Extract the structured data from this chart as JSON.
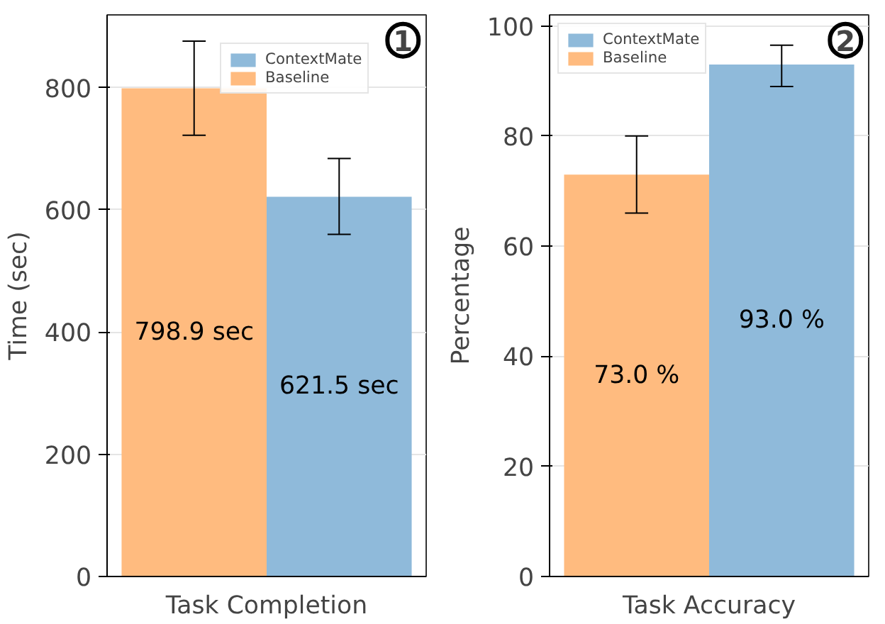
{
  "chart_data": [
    {
      "type": "bar",
      "categories": [
        "Task Completion"
      ],
      "ylabel": "Time (sec)",
      "ylim": [
        0,
        919
      ],
      "yticks": [
        0,
        200,
        400,
        600,
        800
      ],
      "grid": "y",
      "legend": "top right",
      "annotations": [
        "1"
      ],
      "series": [
        {
          "name": "Baseline",
          "color": "#ffbb7f",
          "values": [
            798.9
          ],
          "errors": [
            [
              722,
              876
            ]
          ],
          "value_labels": [
            "798.9 sec"
          ]
        },
        {
          "name": "ContextMate",
          "color": "#8fbada",
          "values": [
            621.5
          ],
          "errors": [
            [
              560,
              684
            ]
          ],
          "value_labels": [
            "621.5 sec"
          ]
        }
      ]
    },
    {
      "type": "bar",
      "categories": [
        "Task Accuracy"
      ],
      "ylabel": "Percentage",
      "ylim": [
        0,
        102
      ],
      "yticks": [
        0,
        20,
        40,
        60,
        80,
        100
      ],
      "grid": "y",
      "legend": "top left",
      "annotations": [
        "2"
      ],
      "series": [
        {
          "name": "Baseline",
          "color": "#ffbb7f",
          "values": [
            73.0
          ],
          "errors": [
            [
              66,
              80
            ]
          ],
          "value_labels": [
            "73.0 %"
          ]
        },
        {
          "name": "ContextMate",
          "color": "#8fbada",
          "values": [
            93.0
          ],
          "errors": [
            [
              89,
              96.5
            ]
          ],
          "value_labels": [
            "93.0 %"
          ]
        }
      ]
    }
  ]
}
